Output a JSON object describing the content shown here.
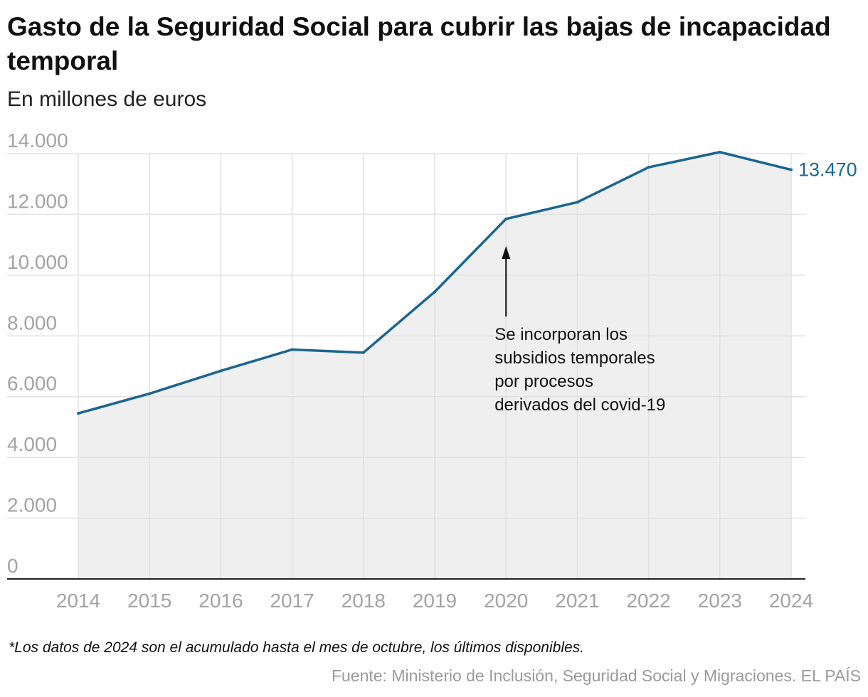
{
  "title": "Gasto de la Seguridad Social para cubrir las bajas de incapacidad temporal",
  "subtitle": "En millones de euros",
  "footnote": "*Los datos de 2024 son el acumulado hasta el mes de octubre, los últimos disponibles.",
  "source": "Fuente: Ministerio de Inclusión, Seguridad Social y Migraciones. EL PAÍS",
  "colors": {
    "line": "#1a6690",
    "area": "#efefef",
    "grid": "#e2e2e2",
    "axis": "#222222",
    "tick_text": "#a3a3a3",
    "annotation_text": "#111111"
  },
  "chart_data": {
    "type": "area",
    "x": [
      "2014",
      "2015",
      "2016",
      "2017",
      "2018",
      "2019",
      "2020",
      "2021",
      "2022",
      "2023",
      "2024"
    ],
    "series": [
      {
        "values": [
          5450,
          6100,
          6850,
          7550,
          7450,
          9450,
          11850,
          12400,
          13550,
          14050,
          13470
        ]
      }
    ],
    "ylim": [
      0,
      14000
    ],
    "yticks": [
      0,
      2000,
      4000,
      6000,
      8000,
      10000,
      12000,
      14000
    ],
    "ytick_labels": [
      "0",
      "2.000",
      "4.000",
      "6.000",
      "8.000",
      "10.000",
      "12.000",
      "14.000"
    ],
    "end_label": "13.470",
    "annotation": {
      "x": "2020",
      "lines": [
        "Se incorporan los",
        "subsidios temporales",
        "por procesos",
        "derivados del covid-19"
      ]
    },
    "grid": true,
    "xlabel": "",
    "ylabel": ""
  }
}
